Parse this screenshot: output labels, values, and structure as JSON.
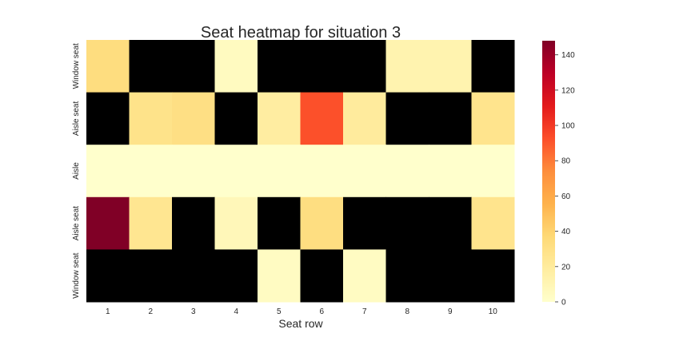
{
  "chart_data": {
    "type": "heatmap",
    "title": "Seat heatmap for situation 3",
    "xlabel": "Seat row",
    "ylabel": "",
    "x_categories": [
      "1",
      "2",
      "3",
      "4",
      "5",
      "6",
      "7",
      "8",
      "9",
      "10"
    ],
    "y_categories": [
      "Window seat",
      "Aisle seat",
      "Aisle",
      "Aisle seat",
      "Window seat"
    ],
    "values": [
      [
        33,
        null,
        null,
        5,
        null,
        null,
        null,
        12,
        12,
        null
      ],
      [
        null,
        28,
        31,
        null,
        18,
        92,
        20,
        null,
        null,
        27
      ],
      [
        0,
        0,
        0,
        0,
        0,
        0,
        0,
        0,
        0,
        0
      ],
      [
        148,
        25,
        null,
        8,
        null,
        32,
        null,
        null,
        null,
        27
      ],
      [
        null,
        null,
        null,
        null,
        4,
        null,
        4,
        null,
        null,
        null
      ]
    ],
    "missing_color": "#000000",
    "colormap": "YlOrRd",
    "colorbar": {
      "min": 0,
      "max": 148,
      "ticks": [
        0,
        20,
        40,
        60,
        80,
        100,
        120,
        140
      ]
    }
  }
}
